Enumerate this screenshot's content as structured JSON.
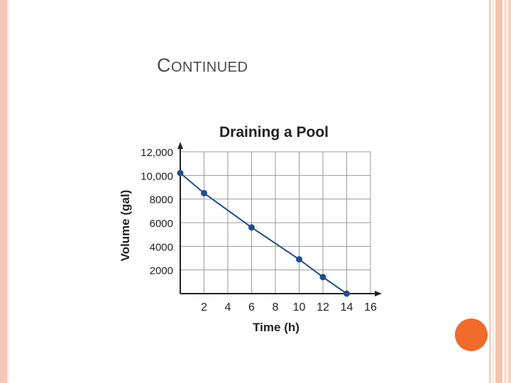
{
  "slide": {
    "title_first": "C",
    "title_rest": "ONTINUED"
  },
  "colors": {
    "border": "#f4c9b8",
    "accent": "#f26b2b",
    "series": "#1f4e8c",
    "grid": "#9a9a9a"
  },
  "chart_data": {
    "type": "line",
    "title": "Draining a Pool",
    "xlabel": "Time (h)",
    "ylabel": "Volume (gal)",
    "xlim": [
      0,
      16
    ],
    "ylim": [
      0,
      12000
    ],
    "xticks": [
      2,
      4,
      6,
      8,
      10,
      12,
      14,
      16
    ],
    "yticks": [
      2000,
      4000,
      6000,
      8000,
      10000,
      12000
    ],
    "xtick_labels": [
      "2",
      "4",
      "6",
      "8",
      "10",
      "12",
      "14",
      "16"
    ],
    "ytick_labels": [
      "2000",
      "4000",
      "6000",
      "8000",
      "10,000",
      "12,000"
    ],
    "grid": true,
    "series": [
      {
        "x": [
          0,
          2,
          6,
          10,
          12,
          14
        ],
        "y": [
          10200,
          8500,
          5600,
          2900,
          1400,
          0
        ]
      }
    ]
  }
}
